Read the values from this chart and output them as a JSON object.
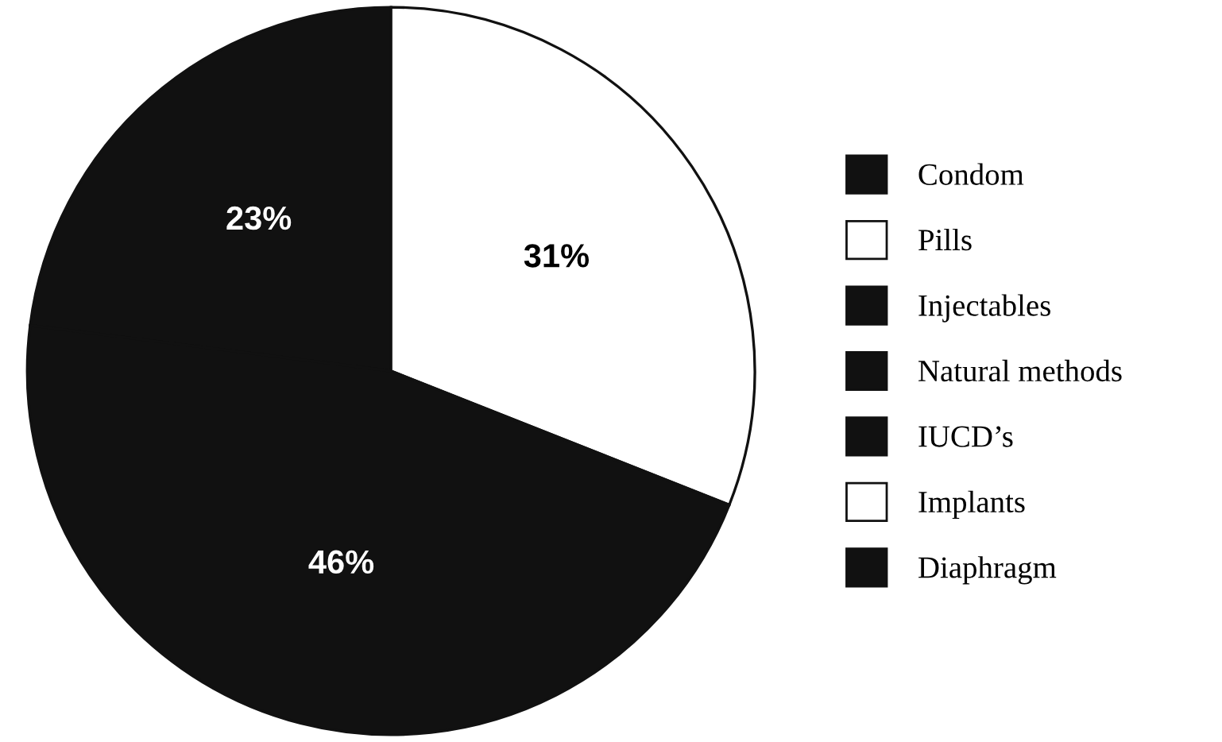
{
  "chart_data": {
    "type": "pie",
    "categories": [
      "Condom",
      "Pills",
      "Injectables",
      "Natural methods",
      "IUCD’s",
      "Implants",
      "Diaphragm"
    ],
    "values": [
      23,
      31,
      46,
      0,
      0,
      0,
      0
    ],
    "value_labels": [
      "23%",
      "31%",
      "46%",
      null,
      null,
      null,
      null
    ],
    "colors": [
      "#111111",
      "#ffffff",
      "#111111",
      "#111111",
      "#111111",
      "#ffffff",
      "#111111"
    ],
    "legend": "right"
  }
}
